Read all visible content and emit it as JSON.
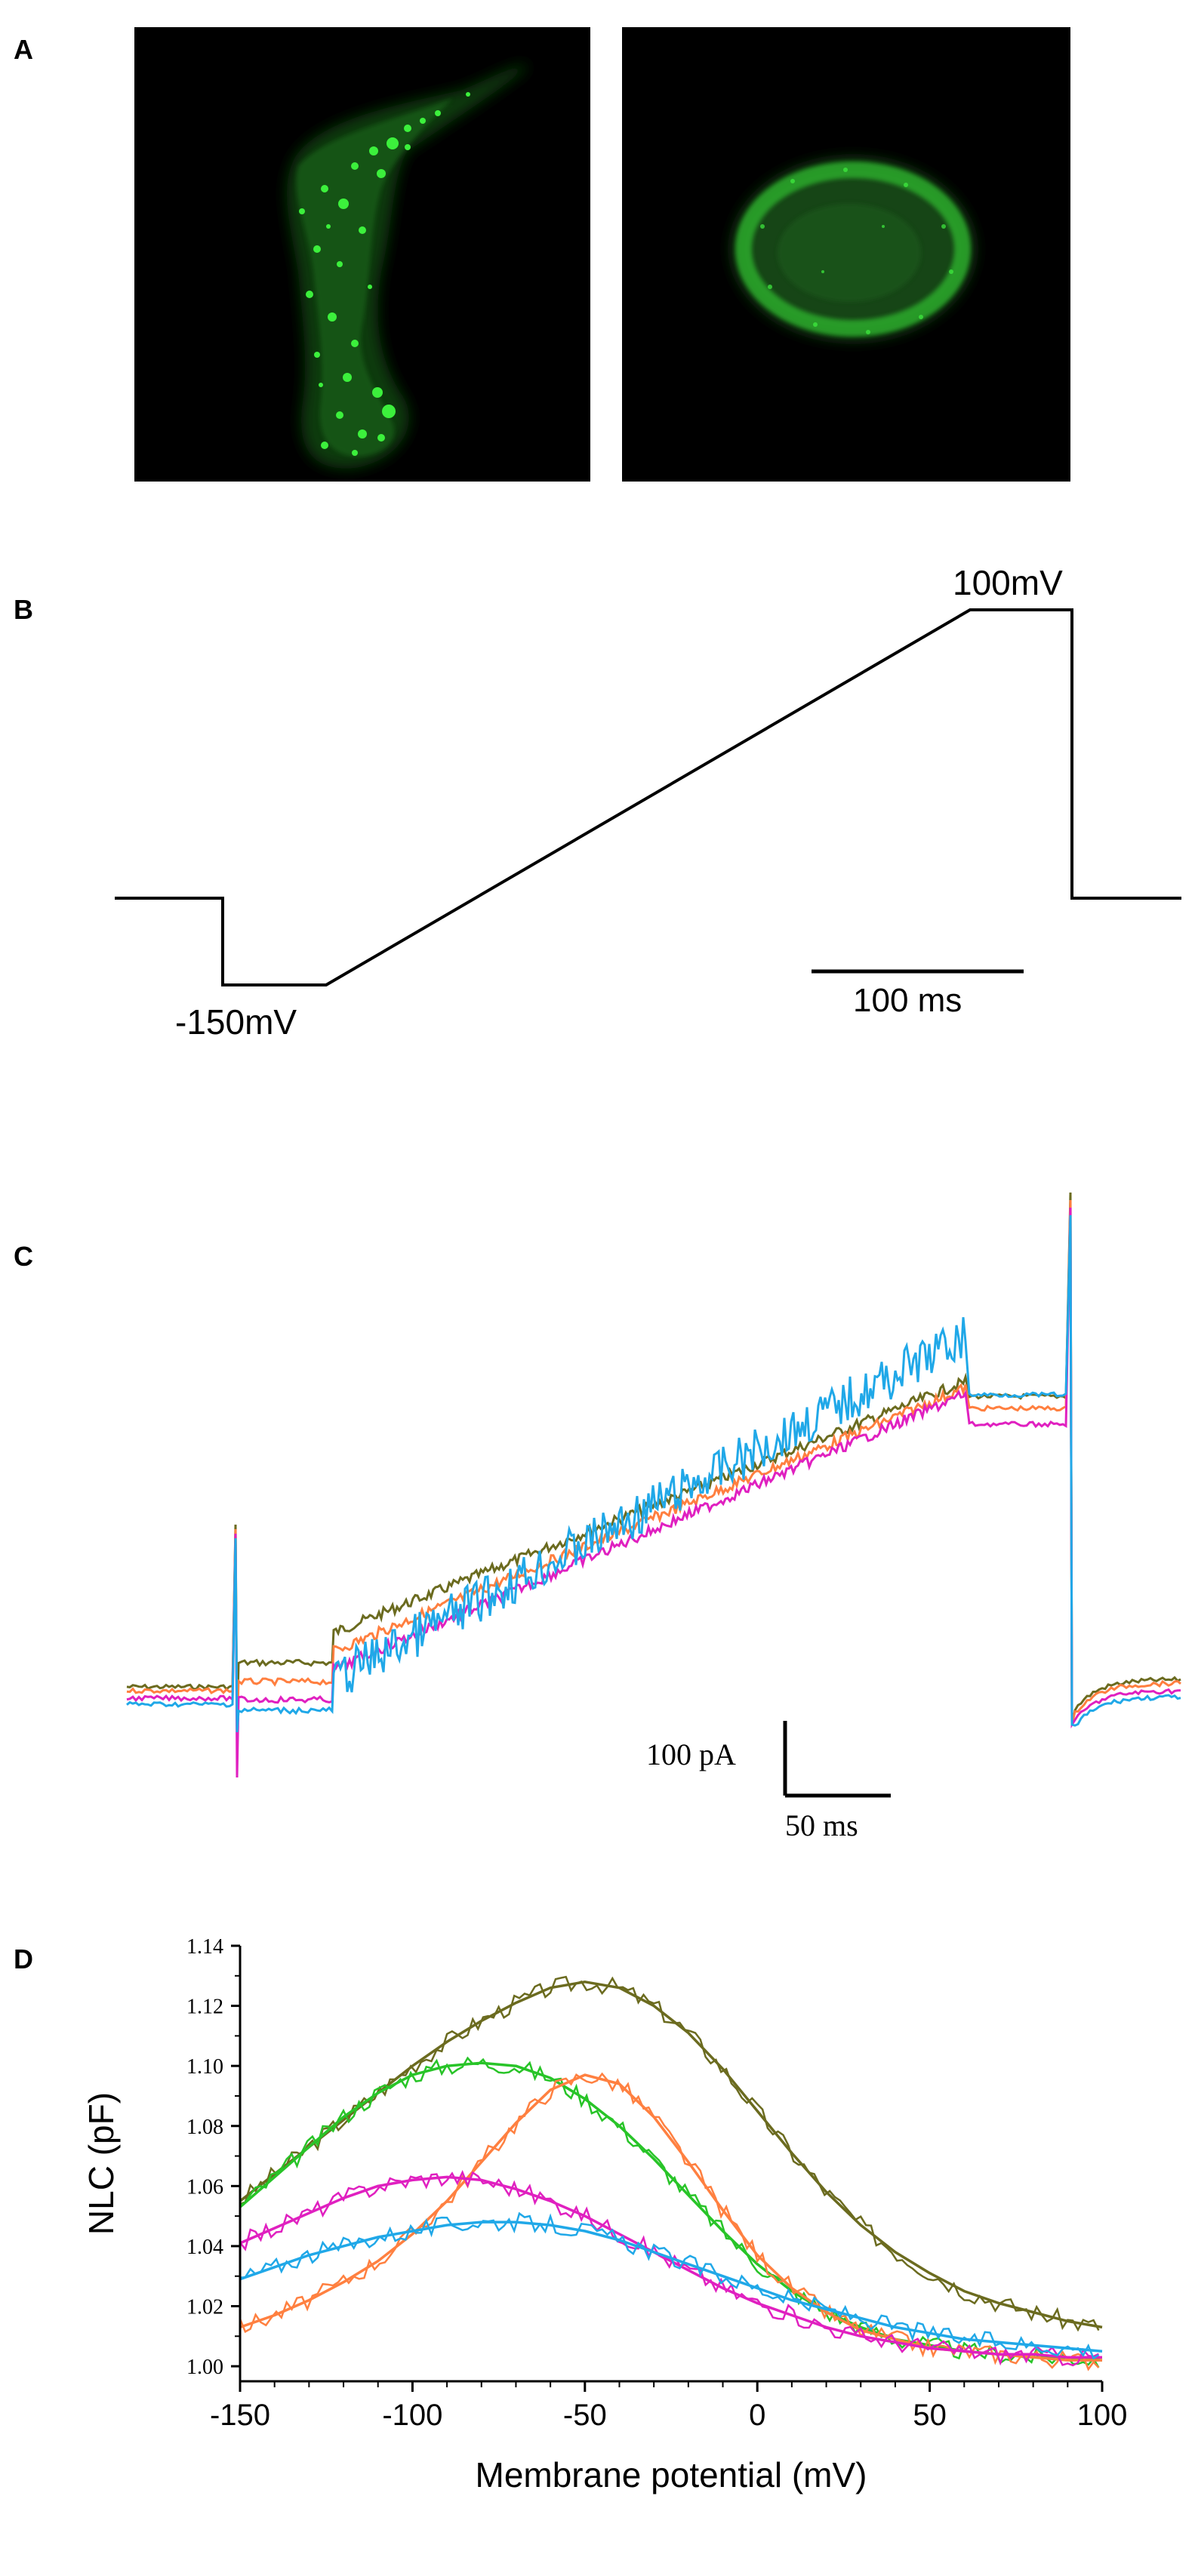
{
  "panels": {
    "a": {
      "letter": "A"
    },
    "b": {
      "letter": "B",
      "top_label": "100mV",
      "bottom_label": "-150mV",
      "scale_label": "100 ms"
    },
    "c": {
      "letter": "C",
      "scale_y_label": "100 pA",
      "scale_x_label": "50 ms",
      "trace_colors": [
        "#6b6b1f",
        "#ff7f3f",
        "#e020c0",
        "#20a8e8"
      ]
    },
    "d": {
      "letter": "D"
    }
  },
  "colors": {
    "olive": "#6b6b1f",
    "green": "#28c428",
    "orange": "#ff8040",
    "magenta": "#e020c0",
    "cyan": "#20a8e8",
    "micrograph_bg": "#000000",
    "micrograph_signal": "#30e030"
  },
  "chart_data": [
    {
      "type": "line",
      "panel": "D",
      "xlabel": "Membrane potential (mV)",
      "ylabel": "NLC (pF)",
      "xlim": [
        -150,
        100
      ],
      "ylim": [
        0.995,
        1.14
      ],
      "xticks": [
        -150,
        -100,
        -50,
        0,
        50,
        100
      ],
      "yticks": [
        1.0,
        1.02,
        1.04,
        1.06,
        1.08,
        1.1,
        1.12,
        1.14
      ],
      "ytick_labels": [
        "1.00",
        "1.02",
        "1.04",
        "1.06",
        "1.08",
        "1.10",
        "1.12",
        "1.14"
      ],
      "grid": false,
      "series": [
        {
          "color": "#6b6b1f",
          "x": [
            -150,
            -140,
            -130,
            -120,
            -110,
            -100,
            -90,
            -80,
            -70,
            -60,
            -50,
            -40,
            -30,
            -20,
            -10,
            0,
            10,
            20,
            30,
            40,
            50,
            60,
            70,
            80,
            90,
            100
          ],
          "values": [
            1.055,
            1.064,
            1.073,
            1.082,
            1.091,
            1.1,
            1.108,
            1.115,
            1.121,
            1.126,
            1.128,
            1.126,
            1.12,
            1.111,
            1.099,
            1.085,
            1.071,
            1.058,
            1.047,
            1.038,
            1.031,
            1.025,
            1.021,
            1.018,
            1.015,
            1.013
          ]
        },
        {
          "color": "#28c428",
          "x": [
            -150,
            -140,
            -130,
            -120,
            -110,
            -100,
            -90,
            -80,
            -70,
            -60,
            -50,
            -40,
            -30,
            -20,
            -10,
            0,
            10,
            20,
            30,
            40,
            50,
            60,
            70,
            80,
            90,
            100
          ],
          "values": [
            1.053,
            1.063,
            1.073,
            1.083,
            1.091,
            1.097,
            1.1,
            1.101,
            1.1,
            1.096,
            1.089,
            1.08,
            1.069,
            1.057,
            1.045,
            1.034,
            1.025,
            1.018,
            1.013,
            1.009,
            1.007,
            1.005,
            1.004,
            1.003,
            1.003,
            1.002
          ]
        },
        {
          "color": "#ff8040",
          "x": [
            -150,
            -140,
            -130,
            -120,
            -110,
            -100,
            -90,
            -80,
            -70,
            -60,
            -50,
            -40,
            -30,
            -20,
            -10,
            0,
            10,
            20,
            30,
            40,
            50,
            60,
            70,
            80,
            90,
            100
          ],
          "values": [
            1.013,
            1.017,
            1.022,
            1.028,
            1.035,
            1.044,
            1.055,
            1.068,
            1.081,
            1.092,
            1.097,
            1.094,
            1.083,
            1.068,
            1.052,
            1.037,
            1.026,
            1.018,
            1.012,
            1.009,
            1.006,
            1.005,
            1.004,
            1.003,
            1.002,
            1.002
          ]
        },
        {
          "color": "#e020c0",
          "x": [
            -150,
            -140,
            -130,
            -120,
            -110,
            -100,
            -90,
            -80,
            -70,
            -60,
            -50,
            -40,
            -30,
            -20,
            -10,
            0,
            10,
            20,
            30,
            40,
            50,
            60,
            70,
            80,
            90,
            100
          ],
          "values": [
            1.041,
            1.046,
            1.051,
            1.056,
            1.06,
            1.062,
            1.063,
            1.062,
            1.059,
            1.055,
            1.05,
            1.044,
            1.038,
            1.032,
            1.026,
            1.021,
            1.017,
            1.013,
            1.01,
            1.008,
            1.006,
            1.005,
            1.004,
            1.004,
            1.003,
            1.003
          ]
        },
        {
          "color": "#20a8e8",
          "x": [
            -150,
            -140,
            -130,
            -120,
            -110,
            -100,
            -90,
            -80,
            -70,
            -60,
            -50,
            -40,
            -30,
            -20,
            -10,
            0,
            10,
            20,
            30,
            40,
            50,
            60,
            70,
            80,
            90,
            100
          ],
          "values": [
            1.029,
            1.033,
            1.037,
            1.04,
            1.043,
            1.045,
            1.047,
            1.048,
            1.048,
            1.047,
            1.045,
            1.042,
            1.038,
            1.034,
            1.03,
            1.026,
            1.022,
            1.019,
            1.016,
            1.013,
            1.011,
            1.009,
            1.008,
            1.007,
            1.006,
            1.005
          ]
        }
      ]
    }
  ]
}
